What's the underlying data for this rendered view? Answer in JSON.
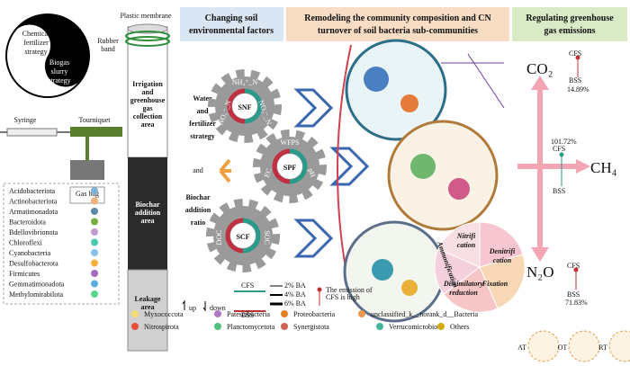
{
  "apparatus": {
    "plastic_membrane": "Plastic membrane",
    "rubber_band": [
      "Rubber",
      "band"
    ],
    "yin": [
      "Chemical",
      "fertilizer",
      "strategy"
    ],
    "yang": [
      "Biogas",
      "slurry",
      "strategy"
    ],
    "syringe": "Syringe",
    "tourniquet": "Tourniquet",
    "gas_bag": "Gas bag",
    "irrigation": [
      "Irrigation",
      "and",
      "greenhouse",
      "gas",
      "collection",
      "area"
    ],
    "biochar": [
      "Biochar",
      "addition",
      "area"
    ],
    "leakage": [
      "Leakage",
      "area"
    ]
  },
  "headers": [
    [
      "Changing soil",
      "environmental factors"
    ],
    [
      "Remodeling the community composition and CN",
      "turnover of soil bacteria  sub-communities"
    ],
    [
      "Regulating greenhouse",
      "gas emissions"
    ]
  ],
  "strategy": {
    "water": [
      "Water",
      "and",
      "fertilizer",
      "strategy"
    ],
    "and": "and",
    "biochar": [
      "Biochar",
      "addition",
      "ratio"
    ]
  },
  "gears": [
    {
      "label": "SNF",
      "factors": [
        "NH₄⁺_N",
        "NO₃⁻_N",
        "NO₂⁻_N"
      ]
    },
    {
      "label": "SPF",
      "factors": [
        "WFPS",
        "EC",
        "pH"
      ]
    },
    {
      "label": "SCF",
      "factors": [
        "DOC",
        "SOC"
      ]
    }
  ],
  "legend": {
    "up": "up",
    "down": "down",
    "cfs": "CFS",
    "bss": "BSS",
    "ba": [
      "2% BA",
      "4% BA",
      "6% BA"
    ],
    "emission": [
      "The emission of",
      "CFS is high"
    ]
  },
  "gases": [
    {
      "name": "CO₂",
      "cfs": "CFS",
      "bss": "BSS",
      "change": "14.89%"
    },
    {
      "name": "CH₄",
      "cfs": "CFS",
      "bss": "BSS",
      "change": "101.72%"
    },
    {
      "name": "N₂O",
      "cfs": "CFS",
      "bss": "BSS",
      "change": "71.83%"
    }
  ],
  "n_cycle": {
    "nitrification": [
      "Nitrifi",
      "cation"
    ],
    "denitrification": [
      "Denitrifi",
      "cation"
    ],
    "ammonification": "Ammonification",
    "dissimilatory": [
      "Dissimilatory",
      "reduction"
    ],
    "fixation": "Fixation"
  },
  "taxa": [
    "Acidobacteriota",
    "Actinobacteriota",
    "Armatimonadota",
    "Bacteroidota",
    "Bdellovibrionota",
    "Chloroflexi",
    "Cyanobacteria",
    "Desulfobacterota",
    "Firmicutes",
    "Gemmatimonadota",
    "Methylomirabilota",
    "Myxococcota",
    "Nitrospirota",
    "Patescibacteria",
    "Planctomycetota",
    "Proteobacteria",
    "Synergistota",
    "unclassified_k__norank_d__Bacteria",
    "Verrucomicrobiota",
    "Others"
  ],
  "samples": [
    "AT",
    "OT",
    "RT"
  ]
}
